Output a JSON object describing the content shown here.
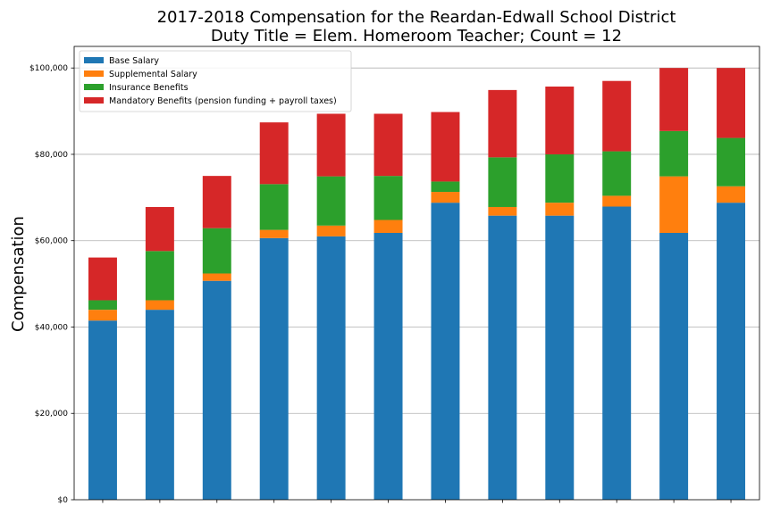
{
  "chart_data": {
    "type": "bar",
    "stacked": true,
    "title_lines": [
      "2017-2018 Compensation for the Reardan-Edwall School District",
      "Duty Title = Elem. Homeroom Teacher; Count = 12"
    ],
    "xlabel": "",
    "ylabel": "Compensation",
    "ylim": [
      0,
      105000
    ],
    "yticks": [
      0,
      20000,
      40000,
      60000,
      80000,
      100000
    ],
    "ytick_labels": [
      "$0",
      "$20,000",
      "$40,000",
      "$60,000",
      "$80,000",
      "$100,000"
    ],
    "grid": "horizontal",
    "legend_position": "top-left",
    "category_count": 12,
    "series": [
      {
        "name": "Base Salary",
        "color": "#1f77b4",
        "values": [
          41500,
          44000,
          50700,
          60600,
          61000,
          61800,
          68800,
          65800,
          65800,
          67900,
          61800,
          68800
        ]
      },
      {
        "name": "Supplemental Salary",
        "color": "#ff7f0e",
        "values": [
          2500,
          2200,
          1700,
          1900,
          2500,
          3000,
          2500,
          2000,
          3000,
          2500,
          13100,
          3800
        ]
      },
      {
        "name": "Insurance Benefits",
        "color": "#2ca02c",
        "values": [
          2200,
          11400,
          10500,
          10600,
          11400,
          10200,
          2400,
          11500,
          11200,
          10300,
          10500,
          11200
        ]
      },
      {
        "name": "Mandatory Benefits (pension funding + payroll taxes)",
        "color": "#d62728",
        "values": [
          9900,
          10200,
          12100,
          14300,
          14500,
          14400,
          16100,
          15600,
          15700,
          16300,
          14600,
          16200
        ]
      }
    ]
  }
}
